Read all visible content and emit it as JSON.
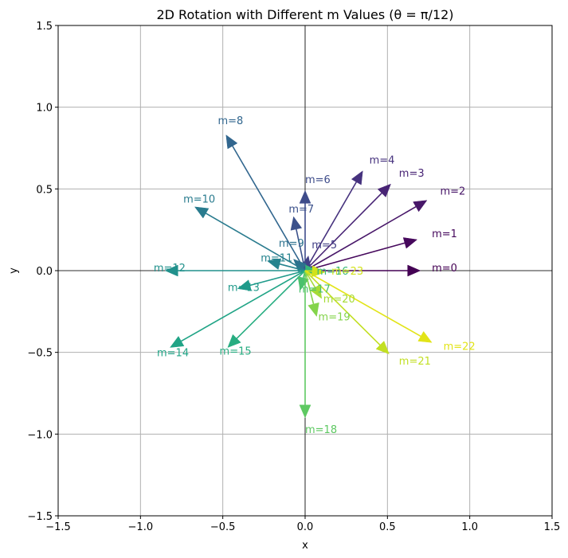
{
  "chart_data": {
    "type": "vector",
    "title": "2D Rotation with Different m Values (θ = π/12)",
    "xlabel": "x",
    "ylabel": "y",
    "xlim": [
      -1.5,
      1.5
    ],
    "ylim": [
      -1.5,
      1.5
    ],
    "grid": true,
    "xticks": [
      -1.5,
      -1.0,
      -0.5,
      0.0,
      0.5,
      1.0,
      1.5
    ],
    "yticks": [
      -1.5,
      -1.0,
      -0.5,
      0.0,
      0.5,
      1.0,
      1.5
    ],
    "xtick_labels": [
      "−1.5",
      "−1.0",
      "−0.5",
      "0.0",
      "0.5",
      "1.0",
      "1.5"
    ],
    "ytick_labels": [
      "−1.5",
      "−1.0",
      "−0.5",
      "0.0",
      "0.5",
      "1.0",
      "1.5"
    ],
    "colormap": "viridis",
    "vectors": [
      {
        "label": "m=0",
        "x": 0.7,
        "y": 0.0,
        "label_x": 0.77,
        "label_y": 0.02,
        "color": "#440154"
      },
      {
        "label": "m=1",
        "x": 0.68,
        "y": 0.19,
        "label_x": 0.77,
        "label_y": 0.23,
        "color": "#46085c"
      },
      {
        "label": "m=2",
        "x": 0.74,
        "y": 0.43,
        "label_x": 0.82,
        "label_y": 0.49,
        "color": "#481769"
      },
      {
        "label": "m=3",
        "x": 0.52,
        "y": 0.53,
        "label_x": 0.57,
        "label_y": 0.6,
        "color": "#482475"
      },
      {
        "label": "m=4",
        "x": 0.35,
        "y": 0.61,
        "label_x": 0.39,
        "label_y": 0.68,
        "color": "#46327e"
      },
      {
        "label": "m=5",
        "x": 0.02,
        "y": 0.09,
        "label_x": 0.04,
        "label_y": 0.16,
        "color": "#424086"
      },
      {
        "label": "m=6",
        "x": 0.0,
        "y": 0.49,
        "label_x": 0.0,
        "label_y": 0.56,
        "color": "#3e4c8a"
      },
      {
        "label": "m=7",
        "x": -0.07,
        "y": 0.33,
        "label_x": -0.1,
        "label_y": 0.38,
        "color": "#3b518b"
      },
      {
        "label": "m=8",
        "x": -0.48,
        "y": 0.83,
        "label_x": -0.53,
        "label_y": 0.92,
        "color": "#31668e"
      },
      {
        "label": "m=9",
        "x": -0.07,
        "y": 0.07,
        "label_x": -0.16,
        "label_y": 0.17,
        "color": "#2c728e"
      },
      {
        "label": "m=10",
        "x": -0.67,
        "y": 0.39,
        "label_x": -0.74,
        "label_y": 0.44,
        "color": "#297b8e"
      },
      {
        "label": "m=11",
        "x": -0.23,
        "y": 0.06,
        "label_x": -0.27,
        "label_y": 0.08,
        "color": "#25838e"
      },
      {
        "label": "m=12",
        "x": -0.85,
        "y": 0.0,
        "label_x": -0.92,
        "label_y": 0.02,
        "color": "#21918c"
      },
      {
        "label": "m=13",
        "x": -0.41,
        "y": -0.11,
        "label_x": -0.47,
        "label_y": -0.1,
        "color": "#1f9a8a"
      },
      {
        "label": "m=14",
        "x": -0.82,
        "y": -0.47,
        "label_x": -0.9,
        "label_y": -0.5,
        "color": "#20a486"
      },
      {
        "label": "m=15",
        "x": -0.47,
        "y": -0.47,
        "label_x": -0.52,
        "label_y": -0.49,
        "color": "#27ad81"
      },
      {
        "label": "m=16",
        "x": 0.08,
        "y": 0.0,
        "label_x": 0.07,
        "label_y": 0.0,
        "color": "#35b779"
      },
      {
        "label": "m=17",
        "x": -0.03,
        "y": -0.12,
        "label_x": -0.04,
        "label_y": -0.11,
        "color": "#4ac16d"
      },
      {
        "label": "m=18",
        "x": 0.0,
        "y": -0.9,
        "label_x": 0.0,
        "label_y": -0.97,
        "color": "#5ec962"
      },
      {
        "label": "m=19",
        "x": 0.07,
        "y": -0.28,
        "label_x": 0.08,
        "label_y": -0.28,
        "color": "#84d44b"
      },
      {
        "label": "m=20",
        "x": 0.1,
        "y": -0.17,
        "label_x": 0.11,
        "label_y": -0.17,
        "color": "#a5db36"
      },
      {
        "label": "m=21",
        "x": 0.51,
        "y": -0.51,
        "label_x": 0.57,
        "label_y": -0.55,
        "color": "#c2df23"
      },
      {
        "label": "m=22",
        "x": 0.77,
        "y": -0.44,
        "label_x": 0.84,
        "label_y": -0.46,
        "color": "#e2e418"
      },
      {
        "label": "m=23",
        "x": 0.12,
        "y": -0.01,
        "label_x": 0.16,
        "label_y": 0.0,
        "color": "#d2e21b"
      }
    ]
  }
}
